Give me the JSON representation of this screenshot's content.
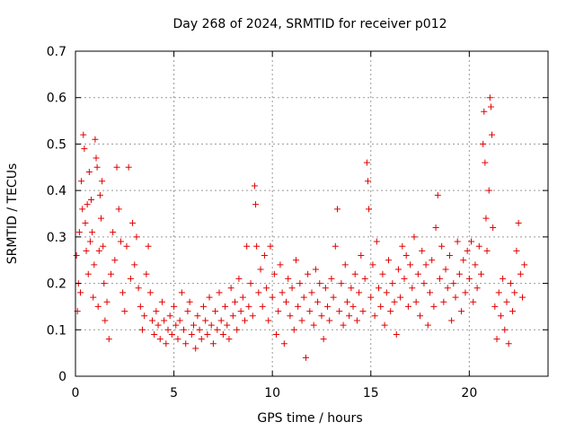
{
  "chart_data": {
    "type": "scatter",
    "title": "Day 268 of 2024, SRMTID for receiver p012",
    "xlabel": "GPS time / hours",
    "ylabel": "SRMTID / TECUs",
    "xlim": [
      0,
      24
    ],
    "ylim": [
      0,
      0.7
    ],
    "x_ticks": [
      0,
      5,
      10,
      15,
      20
    ],
    "x_tick_labels": [
      "0",
      "5",
      "10",
      "15",
      "20"
    ],
    "y_ticks": [
      0,
      0.1,
      0.2,
      0.3,
      0.4,
      0.5,
      0.6,
      0.7
    ],
    "y_tick_labels": [
      "0",
      "0.1",
      "0.2",
      "0.3",
      "0.4",
      "0.5",
      "0.6",
      "0.7"
    ],
    "grid": true,
    "marker": "plus",
    "marker_color": "#e00000",
    "series": [
      {
        "name": "SRMTID",
        "points": [
          [
            0.05,
            0.26
          ],
          [
            0.1,
            0.14
          ],
          [
            0.15,
            0.2
          ],
          [
            0.2,
            0.31
          ],
          [
            0.25,
            0.18
          ],
          [
            0.3,
            0.42
          ],
          [
            0.35,
            0.36
          ],
          [
            0.4,
            0.52
          ],
          [
            0.45,
            0.49
          ],
          [
            0.5,
            0.33
          ],
          [
            0.55,
            0.27
          ],
          [
            0.6,
            0.37
          ],
          [
            0.65,
            0.22
          ],
          [
            0.7,
            0.44
          ],
          [
            0.75,
            0.29
          ],
          [
            0.8,
            0.38
          ],
          [
            0.85,
            0.31
          ],
          [
            0.9,
            0.17
          ],
          [
            0.95,
            0.24
          ],
          [
            1.0,
            0.51
          ],
          [
            1.05,
            0.47
          ],
          [
            1.1,
            0.45
          ],
          [
            1.15,
            0.15
          ],
          [
            1.2,
            0.27
          ],
          [
            1.25,
            0.39
          ],
          [
            1.3,
            0.34
          ],
          [
            1.35,
            0.42
          ],
          [
            1.4,
            0.28
          ],
          [
            1.45,
            0.2
          ],
          [
            1.5,
            0.12
          ],
          [
            1.6,
            0.16
          ],
          [
            1.7,
            0.08
          ],
          [
            1.8,
            0.22
          ],
          [
            1.9,
            0.31
          ],
          [
            2.0,
            0.25
          ],
          [
            2.1,
            0.45
          ],
          [
            2.2,
            0.36
          ],
          [
            2.3,
            0.29
          ],
          [
            2.4,
            0.18
          ],
          [
            2.5,
            0.14
          ],
          [
            2.6,
            0.28
          ],
          [
            2.7,
            0.45
          ],
          [
            2.8,
            0.21
          ],
          [
            2.9,
            0.33
          ],
          [
            3.0,
            0.24
          ],
          [
            3.1,
            0.3
          ],
          [
            3.2,
            0.19
          ],
          [
            3.3,
            0.15
          ],
          [
            3.4,
            0.1
          ],
          [
            3.5,
            0.13
          ],
          [
            3.6,
            0.22
          ],
          [
            3.7,
            0.28
          ],
          [
            3.8,
            0.18
          ],
          [
            3.9,
            0.12
          ],
          [
            4.0,
            0.09
          ],
          [
            4.1,
            0.14
          ],
          [
            4.2,
            0.11
          ],
          [
            4.3,
            0.08
          ],
          [
            4.4,
            0.16
          ],
          [
            4.5,
            0.12
          ],
          [
            4.6,
            0.07
          ],
          [
            4.7,
            0.1
          ],
          [
            4.8,
            0.13
          ],
          [
            4.9,
            0.09
          ],
          [
            5.0,
            0.15
          ],
          [
            5.1,
            0.11
          ],
          [
            5.2,
            0.08
          ],
          [
            5.3,
            0.12
          ],
          [
            5.4,
            0.18
          ],
          [
            5.5,
            0.1
          ],
          [
            5.6,
            0.07
          ],
          [
            5.7,
            0.14
          ],
          [
            5.8,
            0.16
          ],
          [
            5.9,
            0.09
          ],
          [
            6.0,
            0.11
          ],
          [
            6.1,
            0.06
          ],
          [
            6.2,
            0.13
          ],
          [
            6.3,
            0.1
          ],
          [
            6.4,
            0.08
          ],
          [
            6.5,
            0.15
          ],
          [
            6.6,
            0.12
          ],
          [
            6.7,
            0.09
          ],
          [
            6.8,
            0.17
          ],
          [
            6.9,
            0.11
          ],
          [
            7.0,
            0.07
          ],
          [
            7.1,
            0.14
          ],
          [
            7.2,
            0.1
          ],
          [
            7.3,
            0.18
          ],
          [
            7.4,
            0.12
          ],
          [
            7.5,
            0.09
          ],
          [
            7.6,
            0.15
          ],
          [
            7.7,
            0.11
          ],
          [
            7.8,
            0.08
          ],
          [
            7.9,
            0.19
          ],
          [
            8.0,
            0.13
          ],
          [
            8.1,
            0.16
          ],
          [
            8.2,
            0.1
          ],
          [
            8.3,
            0.21
          ],
          [
            8.4,
            0.14
          ],
          [
            8.5,
            0.17
          ],
          [
            8.6,
            0.12
          ],
          [
            8.7,
            0.28
          ],
          [
            8.8,
            0.15
          ],
          [
            8.9,
            0.2
          ],
          [
            9.0,
            0.13
          ],
          [
            9.1,
            0.41
          ],
          [
            9.15,
            0.37
          ],
          [
            9.2,
            0.28
          ],
          [
            9.3,
            0.18
          ],
          [
            9.4,
            0.23
          ],
          [
            9.5,
            0.15
          ],
          [
            9.6,
            0.26
          ],
          [
            9.7,
            0.19
          ],
          [
            9.8,
            0.12
          ],
          [
            9.9,
            0.28
          ],
          [
            10.0,
            0.17
          ],
          [
            10.1,
            0.22
          ],
          [
            10.2,
            0.09
          ],
          [
            10.3,
            0.14
          ],
          [
            10.4,
            0.24
          ],
          [
            10.5,
            0.18
          ],
          [
            10.6,
            0.07
          ],
          [
            10.7,
            0.16
          ],
          [
            10.8,
            0.21
          ],
          [
            10.9,
            0.13
          ],
          [
            11.0,
            0.19
          ],
          [
            11.1,
            0.1
          ],
          [
            11.2,
            0.25
          ],
          [
            11.3,
            0.15
          ],
          [
            11.4,
            0.2
          ],
          [
            11.5,
            0.12
          ],
          [
            11.6,
            0.17
          ],
          [
            11.7,
            0.04
          ],
          [
            11.8,
            0.22
          ],
          [
            11.9,
            0.14
          ],
          [
            12.0,
            0.18
          ],
          [
            12.1,
            0.11
          ],
          [
            12.2,
            0.23
          ],
          [
            12.3,
            0.16
          ],
          [
            12.4,
            0.2
          ],
          [
            12.5,
            0.13
          ],
          [
            12.6,
            0.08
          ],
          [
            12.7,
            0.19
          ],
          [
            12.8,
            0.15
          ],
          [
            12.9,
            0.12
          ],
          [
            13.0,
            0.21
          ],
          [
            13.1,
            0.17
          ],
          [
            13.2,
            0.28
          ],
          [
            13.3,
            0.36
          ],
          [
            13.4,
            0.14
          ],
          [
            13.5,
            0.2
          ],
          [
            13.6,
            0.11
          ],
          [
            13.7,
            0.24
          ],
          [
            13.8,
            0.16
          ],
          [
            13.9,
            0.13
          ],
          [
            14.0,
            0.19
          ],
          [
            14.1,
            0.15
          ],
          [
            14.2,
            0.22
          ],
          [
            14.3,
            0.12
          ],
          [
            14.4,
            0.18
          ],
          [
            14.5,
            0.26
          ],
          [
            14.6,
            0.14
          ],
          [
            14.7,
            0.21
          ],
          [
            14.8,
            0.46
          ],
          [
            14.85,
            0.42
          ],
          [
            14.9,
            0.36
          ],
          [
            15.0,
            0.17
          ],
          [
            15.1,
            0.24
          ],
          [
            15.2,
            0.13
          ],
          [
            15.3,
            0.29
          ],
          [
            15.4,
            0.19
          ],
          [
            15.5,
            0.15
          ],
          [
            15.6,
            0.22
          ],
          [
            15.7,
            0.11
          ],
          [
            15.8,
            0.18
          ],
          [
            15.9,
            0.25
          ],
          [
            16.0,
            0.14
          ],
          [
            16.1,
            0.2
          ],
          [
            16.2,
            0.16
          ],
          [
            16.3,
            0.09
          ],
          [
            16.4,
            0.23
          ],
          [
            16.5,
            0.17
          ],
          [
            16.6,
            0.28
          ],
          [
            16.7,
            0.21
          ],
          [
            16.8,
            0.26
          ],
          [
            16.9,
            0.15
          ],
          [
            17.0,
            0.24
          ],
          [
            17.1,
            0.19
          ],
          [
            17.2,
            0.3
          ],
          [
            17.3,
            0.16
          ],
          [
            17.4,
            0.22
          ],
          [
            17.5,
            0.13
          ],
          [
            17.6,
            0.27
          ],
          [
            17.7,
            0.2
          ],
          [
            17.8,
            0.24
          ],
          [
            17.9,
            0.11
          ],
          [
            18.0,
            0.18
          ],
          [
            18.1,
            0.25
          ],
          [
            18.2,
            0.15
          ],
          [
            18.3,
            0.32
          ],
          [
            18.4,
            0.39
          ],
          [
            18.5,
            0.21
          ],
          [
            18.6,
            0.28
          ],
          [
            18.7,
            0.16
          ],
          [
            18.8,
            0.23
          ],
          [
            18.9,
            0.19
          ],
          [
            19.0,
            0.26
          ],
          [
            19.1,
            0.12
          ],
          [
            19.2,
            0.2
          ],
          [
            19.3,
            0.17
          ],
          [
            19.4,
            0.29
          ],
          [
            19.5,
            0.22
          ],
          [
            19.6,
            0.14
          ],
          [
            19.7,
            0.25
          ],
          [
            19.8,
            0.18
          ],
          [
            19.9,
            0.27
          ],
          [
            20.0,
            0.21
          ],
          [
            20.1,
            0.29
          ],
          [
            20.2,
            0.16
          ],
          [
            20.3,
            0.24
          ],
          [
            20.4,
            0.19
          ],
          [
            20.5,
            0.28
          ],
          [
            20.6,
            0.22
          ],
          [
            20.7,
            0.5
          ],
          [
            20.75,
            0.57
          ],
          [
            20.8,
            0.46
          ],
          [
            20.85,
            0.34
          ],
          [
            20.9,
            0.27
          ],
          [
            21.0,
            0.4
          ],
          [
            21.05,
            0.6
          ],
          [
            21.1,
            0.58
          ],
          [
            21.15,
            0.52
          ],
          [
            21.2,
            0.32
          ],
          [
            21.3,
            0.15
          ],
          [
            21.4,
            0.08
          ],
          [
            21.5,
            0.18
          ],
          [
            21.6,
            0.13
          ],
          [
            21.7,
            0.21
          ],
          [
            21.8,
            0.1
          ],
          [
            21.9,
            0.16
          ],
          [
            22.0,
            0.07
          ],
          [
            22.1,
            0.2
          ],
          [
            22.2,
            0.14
          ],
          [
            22.3,
            0.18
          ],
          [
            22.4,
            0.27
          ],
          [
            22.5,
            0.33
          ],
          [
            22.6,
            0.22
          ],
          [
            22.7,
            0.17
          ],
          [
            22.8,
            0.24
          ]
        ]
      }
    ]
  }
}
